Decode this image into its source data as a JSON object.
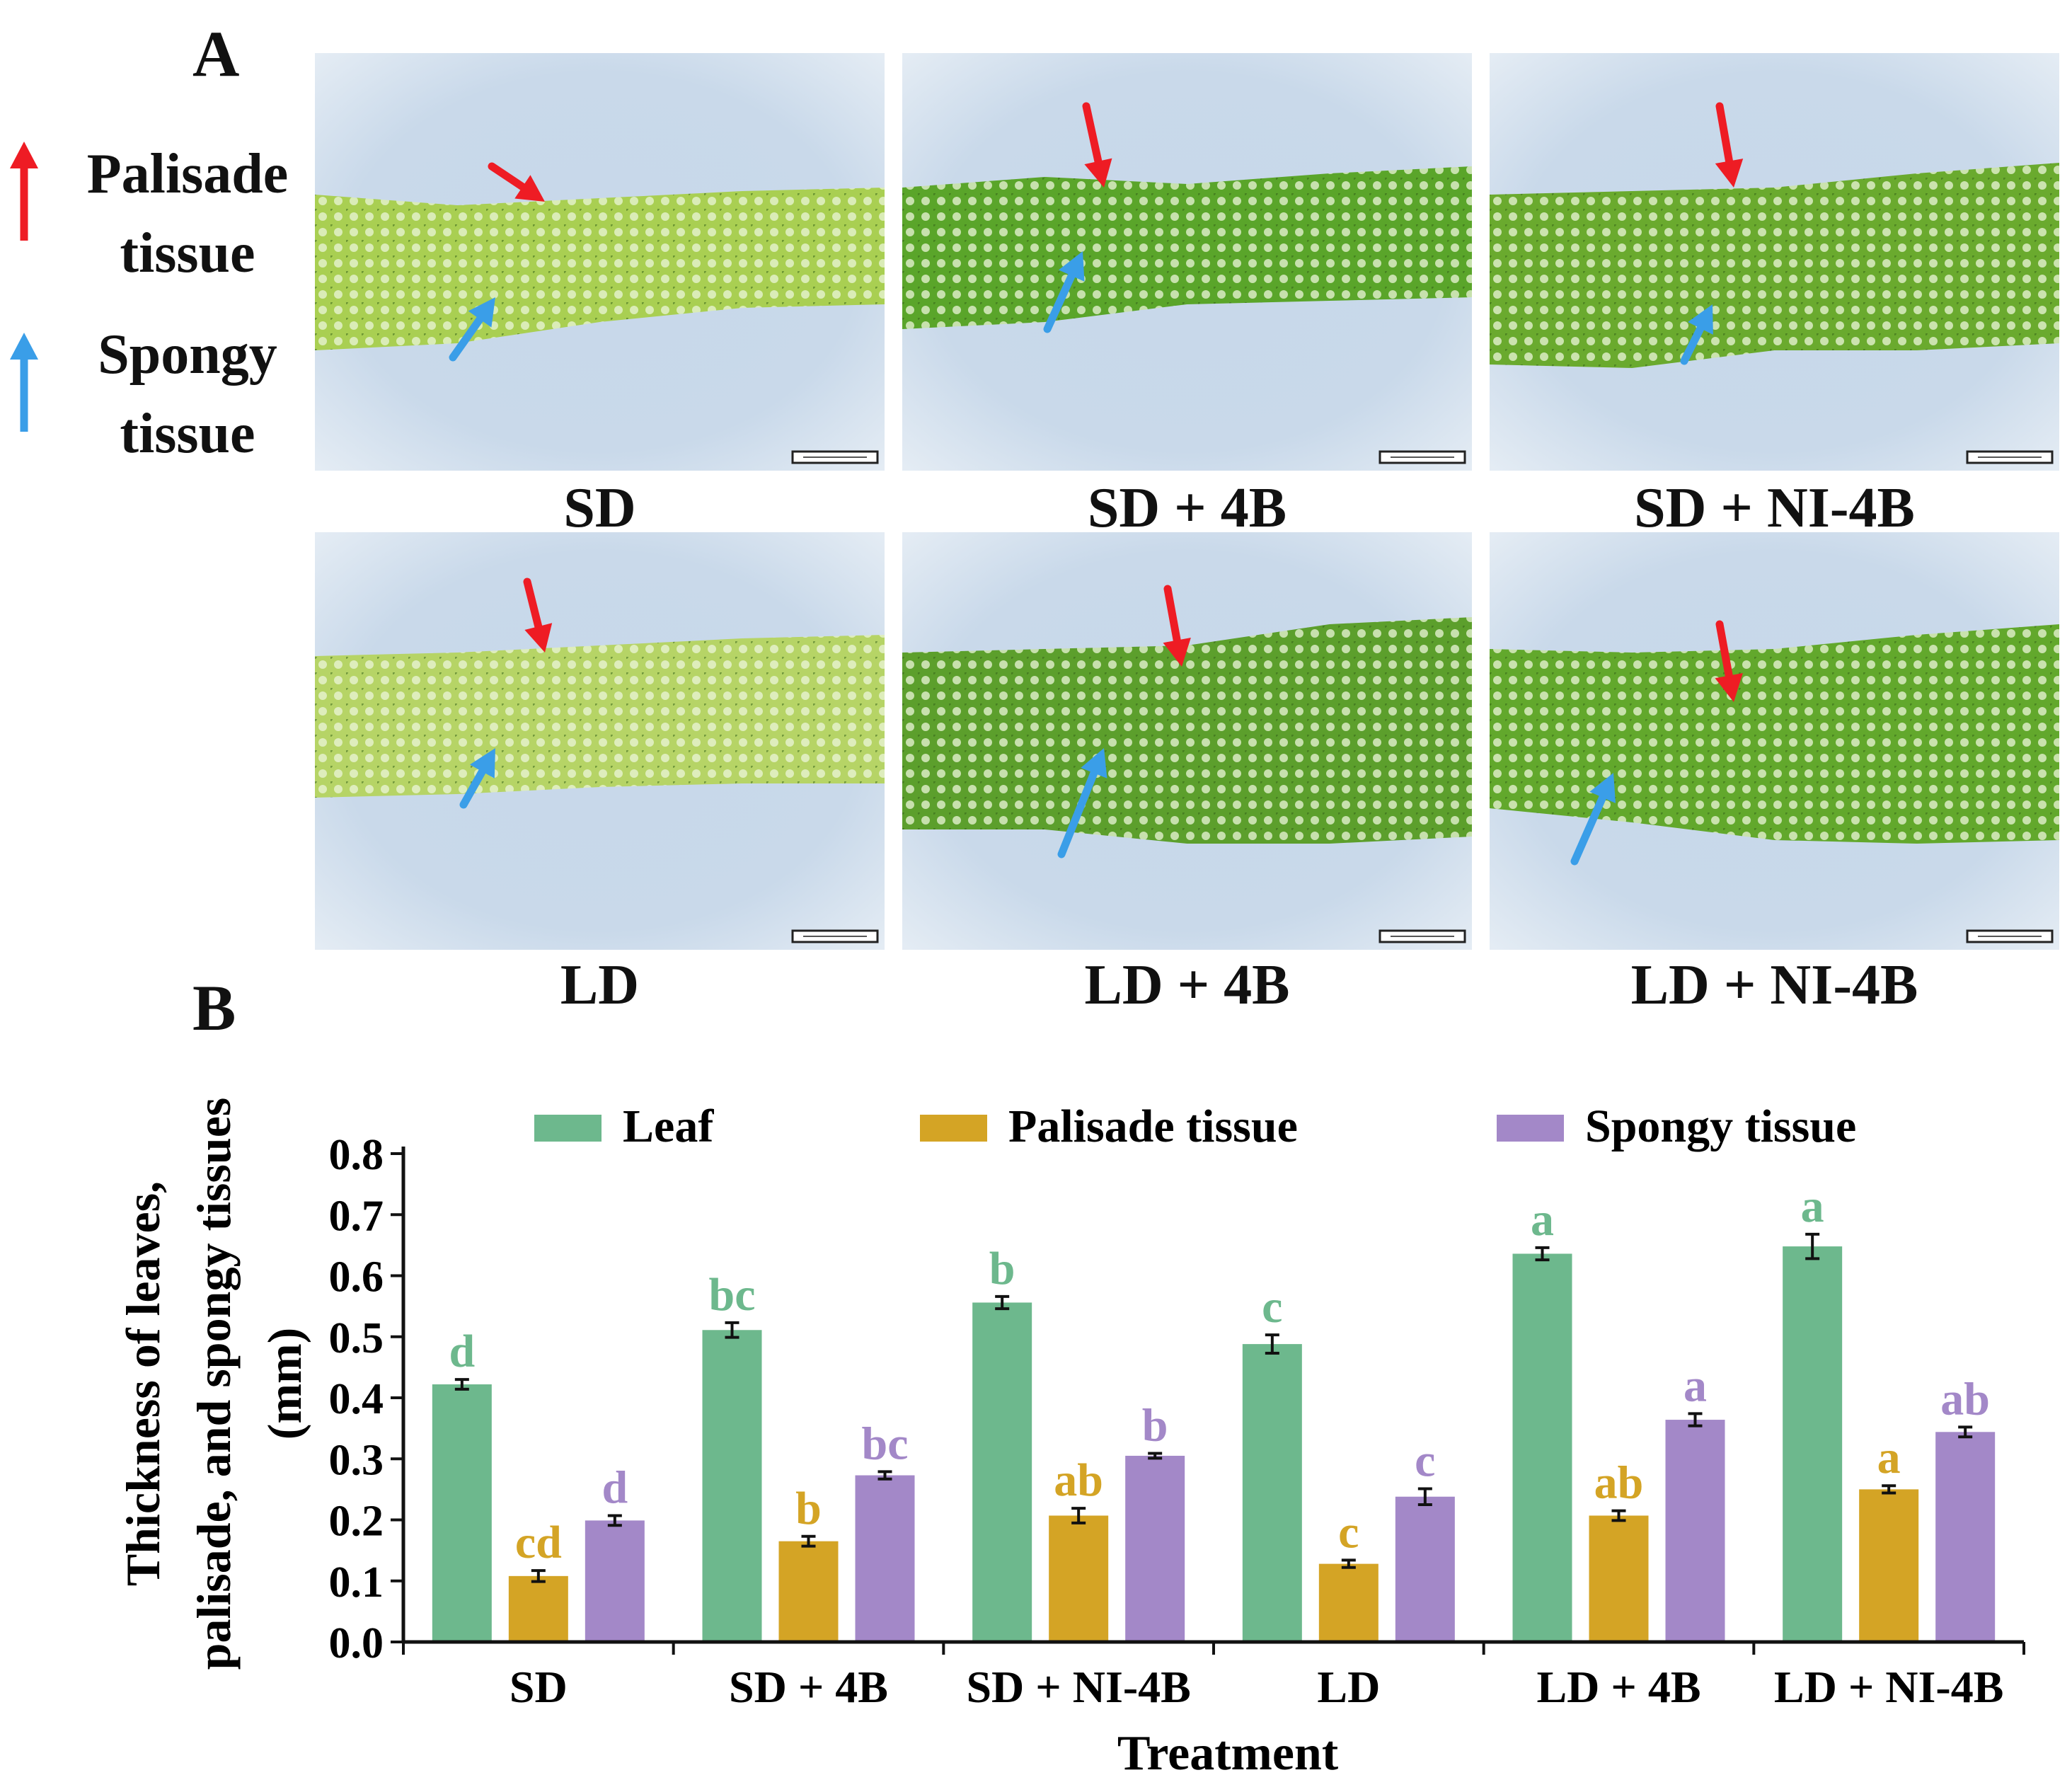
{
  "panels": {
    "a": "A",
    "b": "B"
  },
  "legend_a": {
    "palisade": [
      "Palisade",
      "tissue"
    ],
    "spongy": [
      "Spongy",
      "tissue"
    ],
    "palisade_color": "#ee1c24",
    "spongy_color": "#3a9ee8"
  },
  "micrographs": [
    {
      "caption": "SD",
      "tissue_color": "#a9cf52"
    },
    {
      "caption": "SD + 4B",
      "tissue_color": "#5aa52a"
    },
    {
      "caption": "SD + NI-4B",
      "tissue_color": "#6aaa2e"
    },
    {
      "caption": "LD",
      "tissue_color": "#b6d466"
    },
    {
      "caption": "LD + 4B",
      "tissue_color": "#5c9f2c"
    },
    {
      "caption": "LD + NI-4B",
      "tissue_color": "#62a82c"
    }
  ],
  "chart_data": {
    "type": "bar",
    "categories": [
      "SD",
      "SD + 4B",
      "SD + NI-4B",
      "LD",
      "LD + 4B",
      "LD + NI-4B"
    ],
    "xlabel": "Treatment",
    "ylabel": [
      "Thickness of leaves,",
      "palisade, and spongy tissues",
      "(mm)"
    ],
    "ylim": [
      0,
      0.8
    ],
    "yticks": [
      "0.0",
      "0.1",
      "0.2",
      "0.3",
      "0.4",
      "0.5",
      "0.6",
      "0.7",
      "0.8"
    ],
    "grid": false,
    "legend_position": "top",
    "series": [
      {
        "name": "Leaf",
        "color": "#6db88d",
        "values": [
          0.422,
          0.511,
          0.556,
          0.488,
          0.636,
          0.648
        ],
        "errors": [
          0.008,
          0.012,
          0.01,
          0.015,
          0.01,
          0.02
        ],
        "letters": [
          "d",
          "bc",
          "b",
          "c",
          "a",
          "a"
        ]
      },
      {
        "name": "Palisade tissue",
        "color": "#d4a425",
        "values": [
          0.108,
          0.165,
          0.207,
          0.128,
          0.207,
          0.25
        ],
        "errors": [
          0.009,
          0.008,
          0.012,
          0.006,
          0.008,
          0.006
        ],
        "letters": [
          "cd",
          "b",
          "ab",
          "c",
          "ab",
          "a"
        ]
      },
      {
        "name": "Spongy tissue",
        "color": "#a388c8",
        "values": [
          0.199,
          0.273,
          0.305,
          0.238,
          0.364,
          0.344
        ],
        "errors": [
          0.008,
          0.006,
          0.004,
          0.013,
          0.01,
          0.008
        ],
        "letters": [
          "d",
          "bc",
          "b",
          "c",
          "a",
          "ab"
        ]
      }
    ]
  }
}
